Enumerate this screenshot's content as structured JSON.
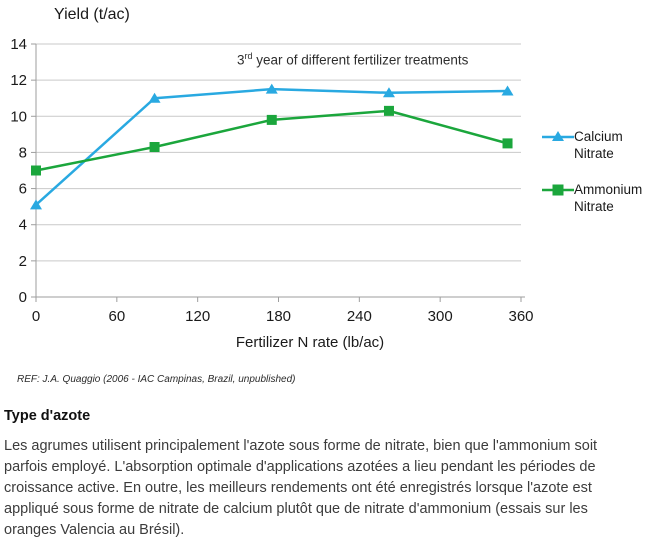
{
  "chart": {
    "title_parts": {
      "num": "3",
      "sup": "rd",
      "rest": " year of different fertilizer treatments"
    },
    "colors": {
      "gridline": "#c9c9c9",
      "axis": "#9e9e9e",
      "tick_text": "#1a1a1a"
    }
  },
  "chart_data": {
    "type": "line",
    "title": "3rd year of different fertilizer treatments",
    "xlabel": "Fertilizer N rate (lb/ac)",
    "ylabel": "Yield (t/ac)",
    "x": [
      0,
      88,
      175,
      262,
      350
    ],
    "series": [
      {
        "name": "Calcium Nitrate",
        "marker": "triangle",
        "color": "#29a9e1",
        "values": [
          5.1,
          11.0,
          11.5,
          11.3,
          11.4
        ]
      },
      {
        "name": "Ammonium Nitrate",
        "marker": "square",
        "color": "#1ba63c",
        "values": [
          7.0,
          8.3,
          9.8,
          10.3,
          8.5
        ]
      }
    ],
    "xlim": [
      0,
      360
    ],
    "ylim": [
      0,
      14
    ],
    "x_ticks": [
      0,
      60,
      120,
      180,
      240,
      300,
      360
    ],
    "y_ticks": [
      0,
      2,
      4,
      6,
      8,
      10,
      12,
      14
    ],
    "grid": "horizontal",
    "legend_position": "right"
  },
  "reference": "REF: J.A. Quaggio (2006 - IAC Campinas, Brazil, unpublished)",
  "section": {
    "heading": "Type d'azote",
    "body": "Les agrumes utilisent principalement l'azote sous forme de nitrate, bien que l'ammonium soit parfois employé. L'absorption optimale d'applications azotées a lieu pendant les périodes de croissance active. En outre, les meilleurs rendements ont été enregistrés lorsque l'azote est appliqué sous forme de nitrate de calcium plutôt que de nitrate d'ammonium (essais sur les oranges Valencia au Brésil)."
  }
}
